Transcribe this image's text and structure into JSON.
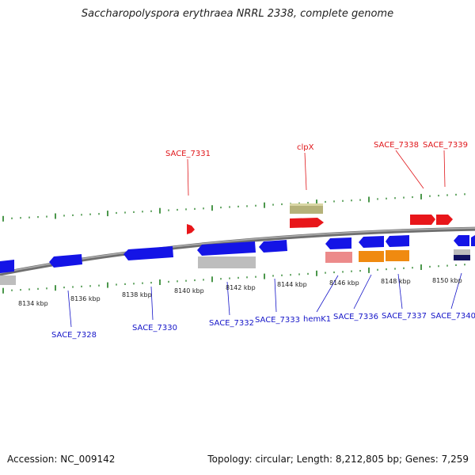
{
  "title": "Saccharopolyspora erythraea NRRL 2338, complete genome",
  "footer": {
    "accession": "Accession: NC_009142",
    "summary": "Topology: circular; Length: 8,212,805 bp; Genes: 7,259"
  },
  "colors": {
    "forward_label": "#e0161a",
    "reverse_label": "#1414c8",
    "forward_cds": "#e8161a",
    "reverse_cds": "#1414e6",
    "backbone": "#8a8a8a",
    "ticks": "#1e7d1e",
    "olive_feature": "#b5b27a",
    "pink_feature": "#ec8a8a",
    "orange_feature": "#f08a10",
    "gray_feature": "#bdbdbd",
    "navy_feature": "#101060"
  },
  "scale_labels": [
    "8134 kbp",
    "8136 kbp",
    "8138 kbp",
    "8140 kbp",
    "8142 kbp",
    "8144 kbp",
    "8146 kbp",
    "8148 kbp",
    "8150 kbp"
  ],
  "gene_labels_top": [
    "SACE_7331",
    "clpX",
    "SACE_7338",
    "SACE_7339"
  ],
  "gene_labels_bottom": [
    "SACE_7328",
    "SACE_7330",
    "SACE_7332",
    "SACE_7333",
    "hemK1",
    "SACE_7336",
    "SACE_7337",
    "SACE_7340"
  ]
}
